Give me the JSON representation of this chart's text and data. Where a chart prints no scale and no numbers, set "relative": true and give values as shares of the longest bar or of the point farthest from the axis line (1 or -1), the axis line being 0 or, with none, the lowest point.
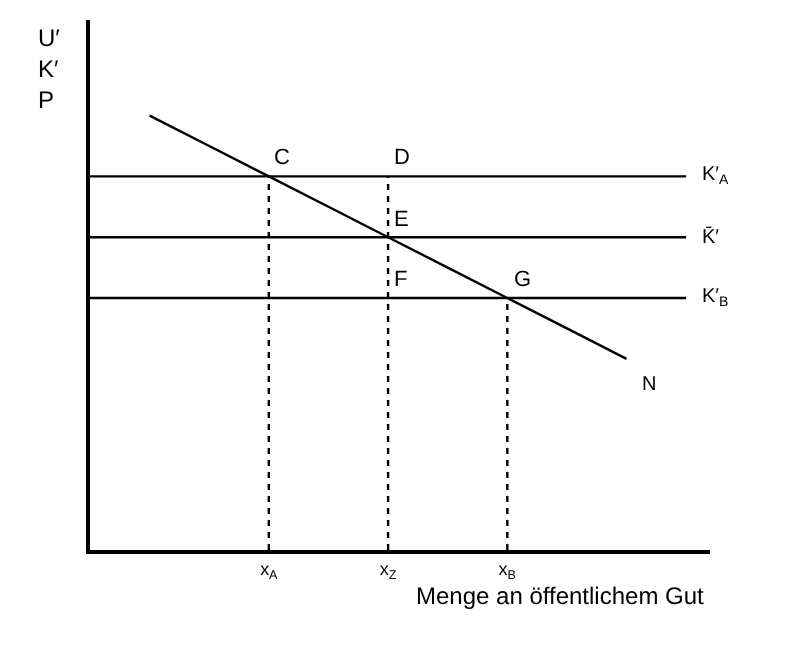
{
  "chart_data": {
    "type": "line",
    "relative": true,
    "legend": false,
    "tick_labels": "x",
    "marker": "none",
    "xlabel": "Menge an öffentlichem Gut",
    "ylabel": "U′\nK′\nP",
    "categories": [
      null,
      null,
      null,
      "x$_{A}$",
      null,
      "x$_{Z}$",
      null,
      "x$_{B}$",
      null,
      null,
      null
    ],
    "series": [
      {
        "name": "K′$_{A}$",
        "color": "#000000",
        "line_style": "solid",
        "values": [
          0.86,
          0.86,
          0.86,
          0.86,
          0.86,
          0.86,
          0.86,
          0.86,
          0.86,
          0.86,
          0.86
        ]
      },
      {
        "name": "K̄′",
        "color": "#000000",
        "line_style": "solid",
        "values": [
          0.72,
          0.72,
          0.72,
          0.72,
          0.72,
          0.72,
          0.72,
          0.72,
          0.72,
          0.72,
          0.72
        ]
      },
      {
        "name": "K′$_{B}$",
        "color": "#000000",
        "line_style": "solid",
        "values": [
          0.58,
          0.58,
          0.58,
          0.58,
          0.58,
          0.58,
          0.58,
          0.58,
          0.58,
          0.58,
          0.58
        ]
      },
      {
        "name": "N",
        "color": "#000000",
        "line_style": "solid",
        "values": [
          null,
          1,
          0.93,
          0.86,
          0.79,
          0.72,
          0.65,
          0.58,
          0.51,
          0.44,
          null
        ]
      },
      {
        "color": "#000000",
        "line_style": "dotted",
        "x": [
          "x$_{A}$",
          "x$_{A}$"
        ],
        "values": [
          0,
          0.86
        ]
      },
      {
        "color": "#000000",
        "line_style": "dotted",
        "x": [
          "x$_{Z}$",
          "x$_{Z}$"
        ],
        "values": [
          0,
          0.86
        ]
      },
      {
        "color": "#000000",
        "line_style": "dotted",
        "x": [
          "x$_{B}$",
          "x$_{B}$"
        ],
        "values": [
          0,
          0.58
        ]
      }
    ],
    "annotations": [
      {
        "text": "C",
        "x": "x$_{A}$",
        "y": 0.86
      },
      {
        "text": "D",
        "x": "x$_{Z}$",
        "y": 0.86
      },
      {
        "text": "E",
        "x": "x$_{Z}$",
        "y": 0.72
      },
      {
        "text": "F",
        "x": "x$_{Z}$",
        "y": 0.58
      },
      {
        "text": "G",
        "x": "x$_{B}$",
        "y": 0.58
      }
    ]
  }
}
